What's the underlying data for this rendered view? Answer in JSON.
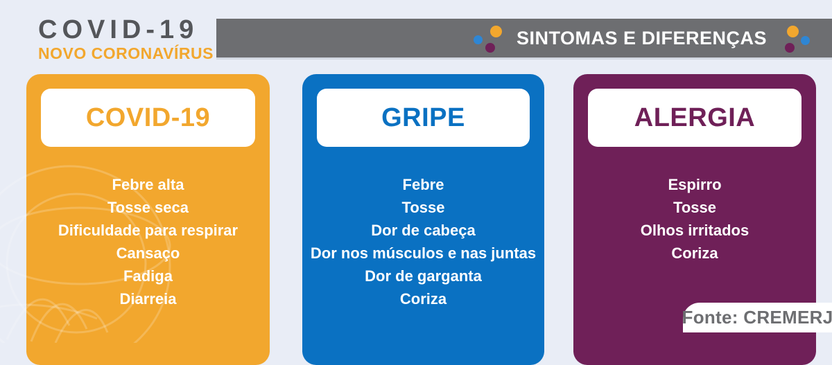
{
  "header": {
    "title": "COVID-19",
    "subtitle": "NOVO CORONAVÍRUS",
    "banner_label": "SINTOMAS E DIFERENÇAS"
  },
  "cards": [
    {
      "title": "COVID-19",
      "color": "#F2A72E",
      "symptoms": [
        "Febre alta",
        "Tosse seca",
        "Dificuldade para respirar",
        "Cansaço",
        "Fadiga",
        "Diarreia"
      ]
    },
    {
      "title": "GRIPE",
      "color": "#0A71C2",
      "symptoms": [
        "Febre",
        "Tosse",
        "Dor de cabeça",
        "Dor nos músculos e nas juntas",
        "Dor de garganta",
        "Coriza"
      ]
    },
    {
      "title": "ALERGIA",
      "color": "#6F2058",
      "symptoms": [
        "Espirro",
        "Tosse",
        "Olhos irritados",
        "Coriza"
      ]
    }
  ],
  "footer": {
    "source": "Fonte: CREMERJ"
  },
  "colors": {
    "background": "#E9EDF6",
    "banner_gray": "#6D6E71",
    "brand_dark": "#54565A",
    "orange": "#F2A72E",
    "blue": "#0A71C2",
    "purple": "#6F2058",
    "dot_blue": "#2E86D4",
    "source_text": "#6D6E71"
  }
}
